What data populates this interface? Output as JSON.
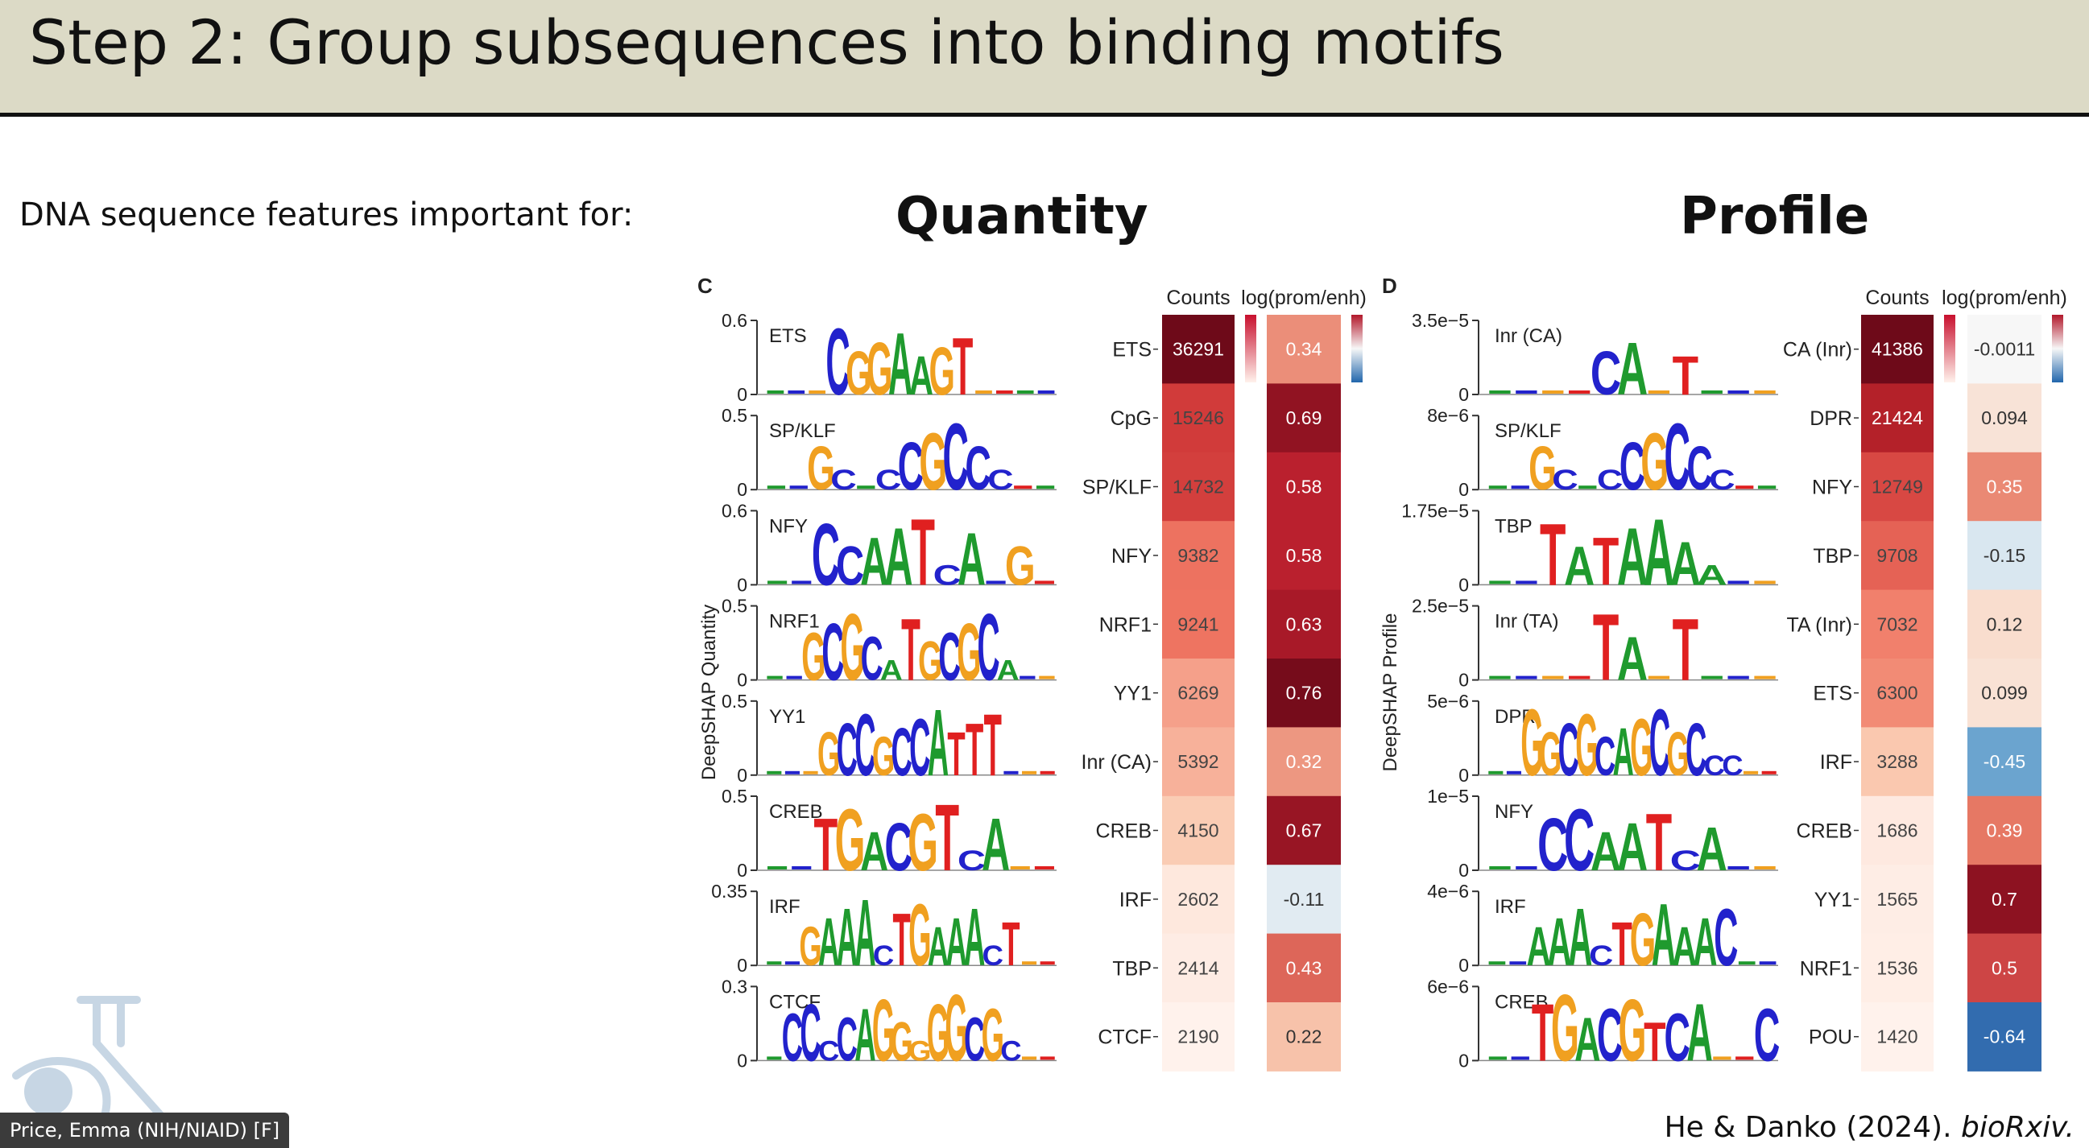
{
  "slide": {
    "title": "Step 2: Group subsequences into binding motifs",
    "subtitle": "DNA sequence features important for:",
    "citation_prefix": "He & Danko (2024). ",
    "citation_journal": "bioRxiv.",
    "participant": "Price, Emma (NIH/NIAID) [F]"
  },
  "colors": {
    "A": "#1f9a2e",
    "C": "#2222cc",
    "G": "#f0a020",
    "T": "#e02020",
    "header_bg": "#dcdac6"
  },
  "panels": [
    {
      "id": "quantity",
      "title": "Quantity",
      "letter": "C",
      "ylabel": "DeepSHAP Quantity",
      "counts_header": "Counts",
      "ratio_header": "log(prom/enh)",
      "motifs": [
        {
          "name": "ETS",
          "ymax": "0.6",
          "seq": "...CGGAAGT...."
        },
        {
          "name": "SP/KLF",
          "ymax": "0.5",
          "seq": "..Gc.cCGCCc.."
        },
        {
          "name": "NFY",
          "ymax": "0.6",
          "seq": "..CCAATcA.G."
        },
        {
          "name": "NRF1",
          "ymax": "0.5",
          "seq": "..GCGCaTGCGCa.."
        },
        {
          "name": "YY1",
          "ymax": "0.5",
          "seq": "...GCCGCCATTT..."
        },
        {
          "name": "CREB",
          "ymax": "0.5",
          "seq": "..TGACGTcA.."
        },
        {
          "name": "IRF",
          "ymax": "0.35",
          "seq": "..GAAAcTGAAAcT.."
        },
        {
          "name": "CTCF",
          "ymax": "0.3",
          "seq": ".CCcCAGGgGGCGc.."
        }
      ],
      "heatmap": [
        {
          "label": "ETS",
          "count": "36291",
          "ratio": "0.34"
        },
        {
          "label": "CpG",
          "count": "15246",
          "ratio": "0.69"
        },
        {
          "label": "SP/KLF",
          "count": "14732",
          "ratio": "0.58"
        },
        {
          "label": "NFY",
          "count": "9382",
          "ratio": "0.58"
        },
        {
          "label": "NRF1",
          "count": "9241",
          "ratio": "0.63"
        },
        {
          "label": "YY1",
          "count": "6269",
          "ratio": "0.76"
        },
        {
          "label": "Inr (CA)",
          "count": "5392",
          "ratio": "0.32"
        },
        {
          "label": "CREB",
          "count": "4150",
          "ratio": "0.67"
        },
        {
          "label": "IRF",
          "count": "2602",
          "ratio": "-0.11"
        },
        {
          "label": "TBP",
          "count": "2414",
          "ratio": "0.43"
        },
        {
          "label": "CTCF",
          "count": "2190",
          "ratio": "0.22"
        }
      ]
    },
    {
      "id": "profile",
      "title": "Profile",
      "letter": "D",
      "ylabel": "DeepSHAP Profile",
      "counts_header": "Counts",
      "ratio_header": "log(prom/enh)",
      "motifs": [
        {
          "name": "Inr (CA)",
          "ymax": "3.5e−5",
          "seq": "....CA.T..."
        },
        {
          "name": "SP/KLF",
          "ymax": "8e−6",
          "seq": "..Gc.cCGCCc.."
        },
        {
          "name": "TBP",
          "ymax": "1.75e−5",
          "seq": "..TATAAAa.."
        },
        {
          "name": "Inr (TA)",
          "ymax": "2.5e−5",
          "seq": "....TA.T..."
        },
        {
          "name": "DPR",
          "ymax": "5e−6",
          "seq": "..GGCGCAGCGCcc.."
        },
        {
          "name": "NFY",
          "ymax": "1e−5",
          "seq": "..CCAATcA.."
        },
        {
          "name": "IRF",
          "ymax": "4e−6",
          "seq": "..AAAcTGAAAC.."
        },
        {
          "name": "CREB",
          "ymax": "6e−6",
          "seq": "..TGACGTCA..C"
        }
      ],
      "heatmap": [
        {
          "label": "CA (Inr)",
          "count": "41386",
          "ratio": "-0.0011"
        },
        {
          "label": "DPR",
          "count": "21424",
          "ratio": "0.094"
        },
        {
          "label": "NFY",
          "count": "12749",
          "ratio": "0.35"
        },
        {
          "label": "TBP",
          "count": "9708",
          "ratio": "-0.15"
        },
        {
          "label": "TA (Inr)",
          "count": "7032",
          "ratio": "0.12"
        },
        {
          "label": "ETS",
          "count": "6300",
          "ratio": "0.099"
        },
        {
          "label": "IRF",
          "count": "3288",
          "ratio": "-0.45"
        },
        {
          "label": "CREB",
          "count": "1686",
          "ratio": "0.39"
        },
        {
          "label": "YY1",
          "count": "1565",
          "ratio": "0.7"
        },
        {
          "label": "NRF1",
          "count": "1536",
          "ratio": "0.5"
        },
        {
          "label": "POU",
          "count": "1420",
          "ratio": "-0.64"
        }
      ]
    }
  ]
}
